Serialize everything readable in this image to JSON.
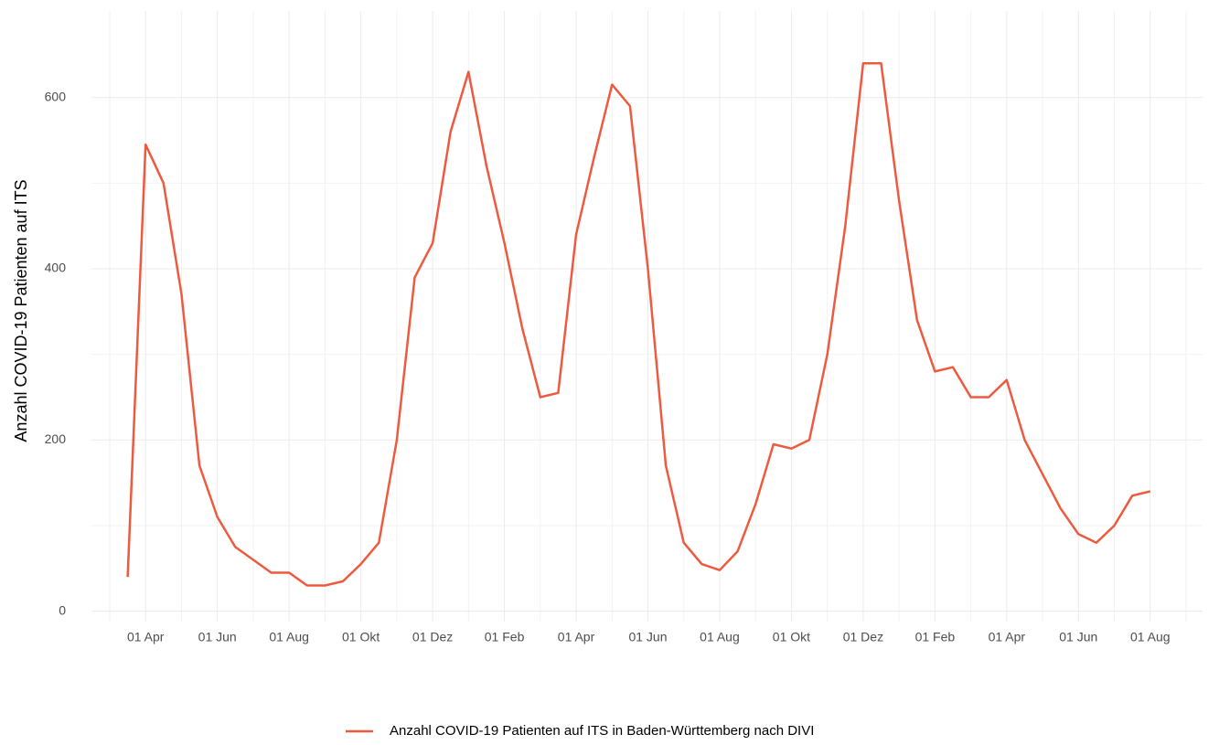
{
  "chart_data": {
    "type": "line",
    "y_label": "Anzahl COVID-19 Patienten auf ITS",
    "categories": [
      null,
      null,
      "01 Apr",
      null,
      null,
      null,
      "01 Jun",
      null,
      null,
      null,
      "01 Aug",
      null,
      null,
      null,
      "01 Okt",
      null,
      null,
      null,
      "01 Dez",
      null,
      null,
      null,
      "01 Feb",
      null,
      null,
      null,
      "01 Apr",
      null,
      null,
      null,
      "01 Jun",
      null,
      null,
      null,
      "01 Aug",
      null,
      null,
      null,
      "01 Okt",
      null,
      null,
      null,
      "01 Dez",
      null,
      null,
      null,
      "01 Feb",
      null,
      null,
      null,
      "01 Apr",
      null,
      null,
      null,
      "01 Jun",
      null,
      null,
      null,
      "01 Aug",
      null,
      null
    ],
    "series": [
      {
        "name": "Anzahl COVID-19 Patienten auf ITS in Baden-Württemberg nach DIVI",
        "color": "#ee5a3f",
        "values": [
          null,
          40,
          545,
          500,
          370,
          170,
          110,
          75,
          60,
          45,
          45,
          30,
          30,
          35,
          55,
          80,
          200,
          390,
          430,
          560,
          630,
          520,
          430,
          330,
          250,
          255,
          440,
          530,
          615,
          590,
          400,
          170,
          80,
          55,
          48,
          70,
          125,
          195,
          190,
          200,
          300,
          450,
          640,
          640,
          480,
          340,
          280,
          285,
          250,
          250,
          270,
          200,
          160,
          120,
          90,
          80,
          100,
          135,
          140,
          null,
          null
        ]
      }
    ],
    "ylim": [
      -10,
      700
    ],
    "yticks": [
      0,
      200,
      400,
      600
    ],
    "grid": true,
    "legend": "bottom"
  }
}
